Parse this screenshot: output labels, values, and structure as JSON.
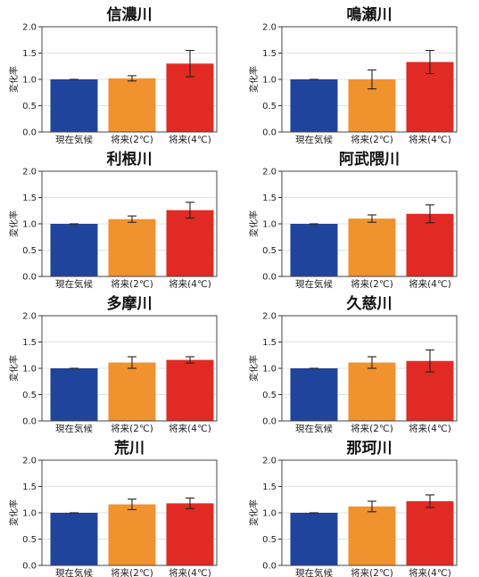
{
  "chart_data": [
    {
      "type": "bar",
      "title": "信濃川",
      "ylabel": "変化率",
      "xlabel": "",
      "ylim": [
        0,
        2.0
      ],
      "yticks": [
        "0.0",
        "0.5",
        "1.0",
        "1.5",
        "2.0"
      ],
      "categories": [
        "現在気候",
        "将来(2℃)",
        "将来(4℃)"
      ],
      "values": [
        1.0,
        1.02,
        1.3
      ],
      "errors": [
        0.0,
        0.05,
        0.25
      ],
      "colors": [
        "#1f449c",
        "#f0922d",
        "#e12a23"
      ],
      "grid": true
    },
    {
      "type": "bar",
      "title": "鳴瀬川",
      "ylabel": "変化率",
      "xlabel": "",
      "ylim": [
        0,
        2.0
      ],
      "yticks": [
        "0.0",
        "0.5",
        "1.0",
        "1.5",
        "2.0"
      ],
      "categories": [
        "現在気候",
        "将来(2℃)",
        "将来(4℃)"
      ],
      "values": [
        1.0,
        1.0,
        1.33
      ],
      "errors": [
        0.0,
        0.18,
        0.22
      ],
      "colors": [
        "#1f449c",
        "#f0922d",
        "#e12a23"
      ],
      "grid": true
    },
    {
      "type": "bar",
      "title": "利根川",
      "ylabel": "変化率",
      "xlabel": "",
      "ylim": [
        0,
        2.0
      ],
      "yticks": [
        "0.0",
        "0.5",
        "1.0",
        "1.5",
        "2.0"
      ],
      "categories": [
        "現在気候",
        "将来(2℃)",
        "将来(4℃)"
      ],
      "values": [
        1.0,
        1.09,
        1.26
      ],
      "errors": [
        0.0,
        0.06,
        0.15
      ],
      "colors": [
        "#1f449c",
        "#f0922d",
        "#e12a23"
      ],
      "grid": true
    },
    {
      "type": "bar",
      "title": "阿武隈川",
      "ylabel": "変化率",
      "xlabel": "",
      "ylim": [
        0,
        2.0
      ],
      "yticks": [
        "0.0",
        "0.5",
        "1.0",
        "1.5",
        "2.0"
      ],
      "categories": [
        "現在気候",
        "将来(2℃)",
        "将来(4℃)"
      ],
      "values": [
        1.0,
        1.1,
        1.19
      ],
      "errors": [
        0.0,
        0.07,
        0.17
      ],
      "colors": [
        "#1f449c",
        "#f0922d",
        "#e12a23"
      ],
      "grid": true
    },
    {
      "type": "bar",
      "title": "多摩川",
      "ylabel": "変化率",
      "xlabel": "",
      "ylim": [
        0,
        2.0
      ],
      "yticks": [
        "0.0",
        "0.5",
        "1.0",
        "1.5",
        "2.0"
      ],
      "categories": [
        "現在気候",
        "将来(2℃)",
        "将来(4℃)"
      ],
      "values": [
        1.0,
        1.11,
        1.16
      ],
      "errors": [
        0.0,
        0.11,
        0.06
      ],
      "colors": [
        "#1f449c",
        "#f0922d",
        "#e12a23"
      ],
      "grid": true
    },
    {
      "type": "bar",
      "title": "久慈川",
      "ylabel": "変化率",
      "xlabel": "",
      "ylim": [
        0,
        2.0
      ],
      "yticks": [
        "0.0",
        "0.5",
        "1.0",
        "1.5",
        "2.0"
      ],
      "categories": [
        "現在気候",
        "将来(2℃)",
        "将来(4℃)"
      ],
      "values": [
        1.0,
        1.11,
        1.14
      ],
      "errors": [
        0.0,
        0.11,
        0.21
      ],
      "colors": [
        "#1f449c",
        "#f0922d",
        "#e12a23"
      ],
      "grid": true
    },
    {
      "type": "bar",
      "title": "荒川",
      "ylabel": "変化率",
      "xlabel": "",
      "ylim": [
        0,
        2.0
      ],
      "yticks": [
        "0.0",
        "0.5",
        "1.0",
        "1.5",
        "2.0"
      ],
      "categories": [
        "現在気候",
        "将来(2℃)",
        "将来(4℃)"
      ],
      "values": [
        1.0,
        1.16,
        1.18
      ],
      "errors": [
        0.0,
        0.1,
        0.1
      ],
      "colors": [
        "#1f449c",
        "#f0922d",
        "#e12a23"
      ],
      "grid": true
    },
    {
      "type": "bar",
      "title": "那珂川",
      "ylabel": "変化率",
      "xlabel": "",
      "ylim": [
        0,
        2.0
      ],
      "yticks": [
        "0.0",
        "0.5",
        "1.0",
        "1.5",
        "2.0"
      ],
      "categories": [
        "現在気候",
        "将来(2℃)",
        "将来(4℃)"
      ],
      "values": [
        1.0,
        1.12,
        1.22
      ],
      "errors": [
        0.0,
        0.1,
        0.12
      ],
      "colors": [
        "#1f449c",
        "#f0922d",
        "#e12a23"
      ],
      "grid": true
    }
  ]
}
